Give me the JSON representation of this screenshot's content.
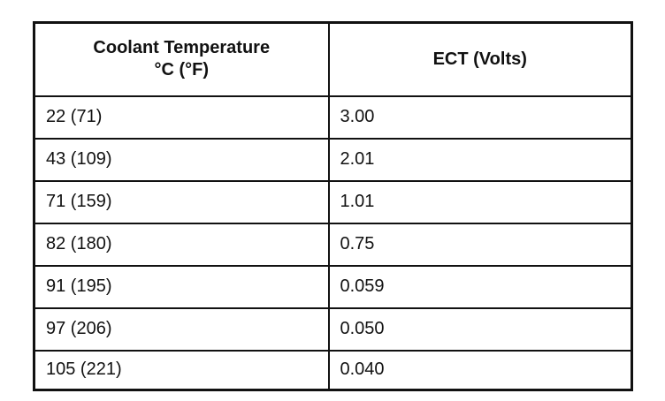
{
  "table": {
    "header": {
      "temperature": [
        "Coolant Temperature",
        "°C (°F)"
      ],
      "voltage": "ECT (Volts)"
    },
    "rows": [
      [
        "22 (71)",
        "3.00"
      ],
      [
        "43 (109)",
        "2.01"
      ],
      [
        "71 (159)",
        "1.01"
      ],
      [
        "82 (180)",
        "0.75"
      ],
      [
        "91 (195)",
        "0.059"
      ],
      [
        "97 (206)",
        "0.050"
      ],
      [
        "105 (221)",
        "0.040"
      ]
    ]
  }
}
